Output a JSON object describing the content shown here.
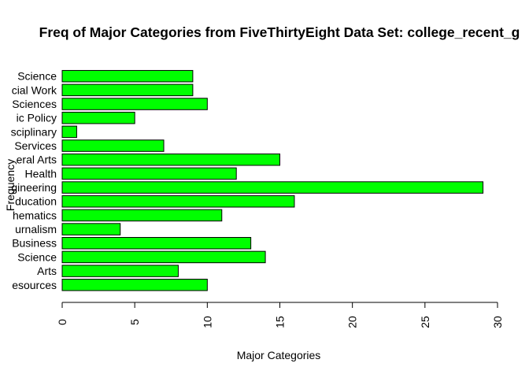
{
  "chart_data": {
    "type": "bar",
    "orientation": "horizontal",
    "title": "Freq of Major Categories from FiveThirtyEight Data Set: college_recent_g",
    "xlabel": "Major Categories",
    "ylabel": "Frequency",
    "categories": [
      "Agriculture & Natural Resources",
      "Arts",
      "Biology & Life Science",
      "Business",
      "Communications & Journalism",
      "Computers & Mathematics",
      "Education",
      "Engineering",
      "Health",
      "Humanities & Liberal Arts",
      "Industrial Arts & Consumer Services",
      "Interdisciplinary",
      "Law & Public Policy",
      "Physical Sciences",
      "Psychology & Social Work",
      "Social Science"
    ],
    "category_visible_labels": [
      "esources",
      "Arts",
      "Science",
      "Business",
      "urnalism",
      "hematics",
      "ducation",
      "gineering",
      "Health",
      "eral Arts",
      "Services",
      "sciplinary",
      "ic Policy",
      "Sciences",
      "cial Work",
      "Science"
    ],
    "values": [
      10,
      8,
      14,
      13,
      4,
      11,
      16,
      29,
      12,
      15,
      7,
      1,
      5,
      10,
      9,
      9
    ],
    "xlim": [
      0,
      30
    ],
    "xticks": [
      "0",
      "5",
      "10",
      "15",
      "20",
      "25",
      "30"
    ],
    "bar_color": "#00ff00",
    "bar_border_color": "#000000",
    "grid": false,
    "legend": "none"
  }
}
